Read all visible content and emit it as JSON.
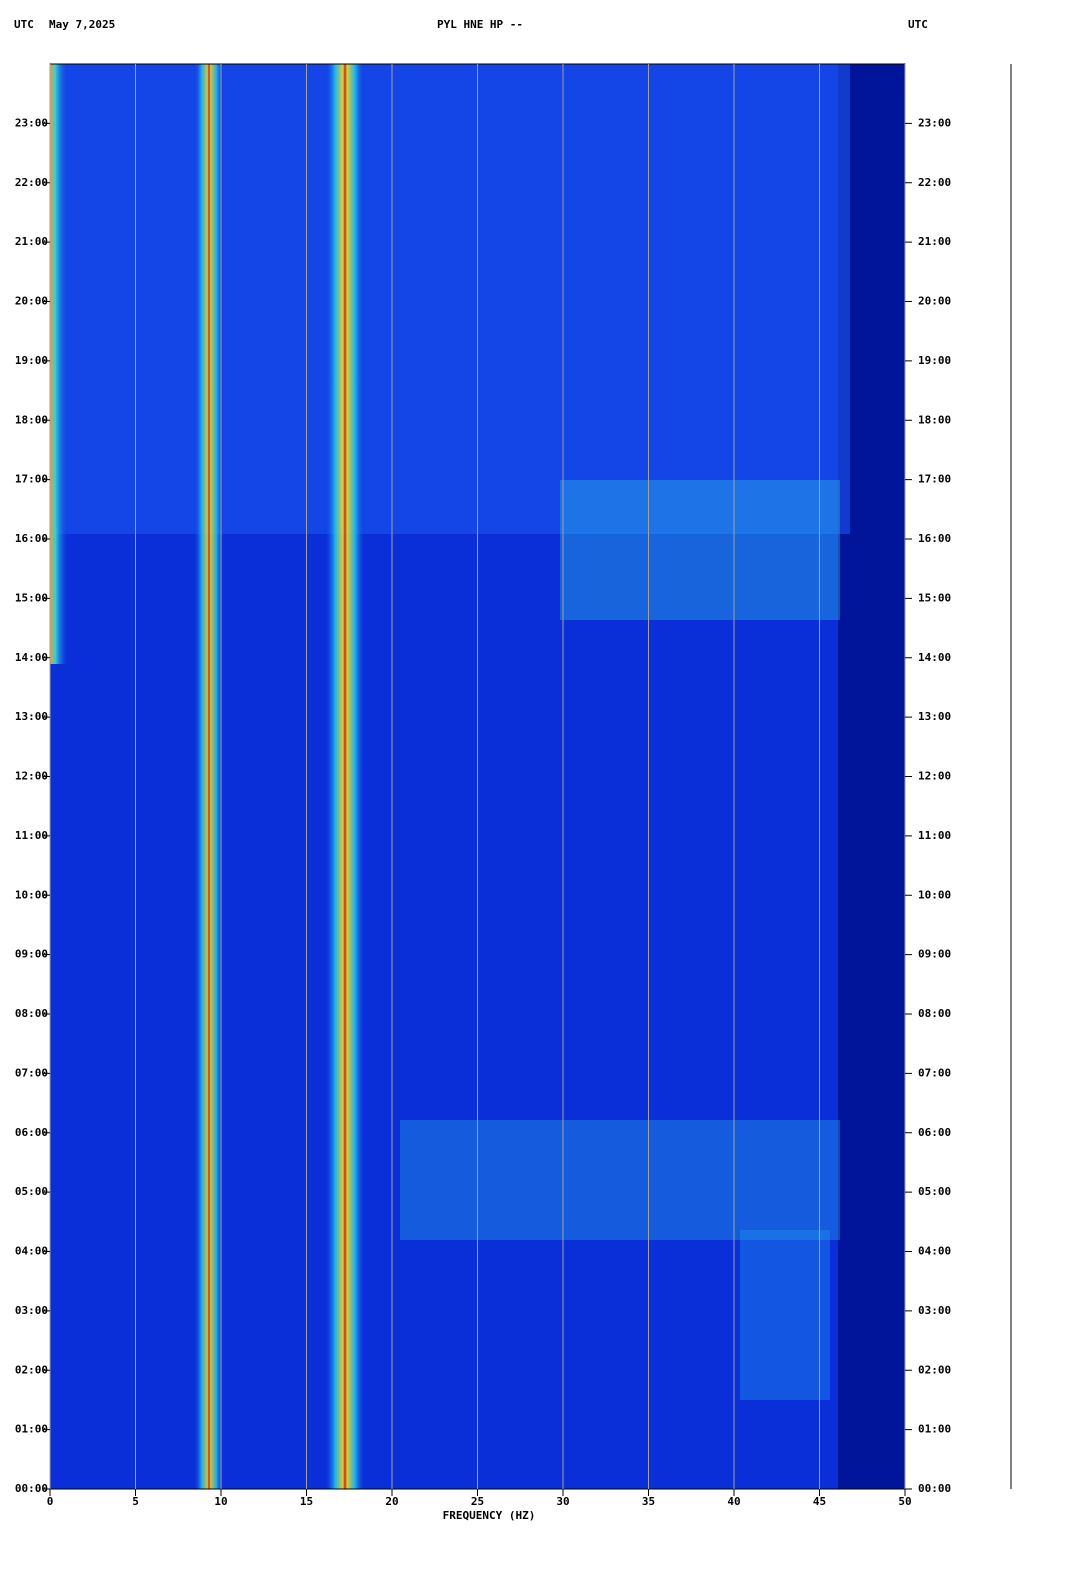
{
  "chart_data": {
    "type": "spectrogram",
    "title": "PYL HNE HP --",
    "timezone_left": "UTC",
    "date": "May 7,2025",
    "timezone_right": "UTC",
    "x_label": "FREQUENCY (HZ)",
    "xlim": [
      0,
      50
    ],
    "xticks": [
      0,
      5,
      10,
      15,
      20,
      25,
      30,
      35,
      40,
      45,
      50
    ],
    "ylim": [
      0,
      24
    ],
    "yticks": [
      {
        "value": 0,
        "label": "00:00"
      },
      {
        "value": 1,
        "label": "01:00"
      },
      {
        "value": 2,
        "label": "02:00"
      },
      {
        "value": 3,
        "label": "03:00"
      },
      {
        "value": 4,
        "label": "04:00"
      },
      {
        "value": 5,
        "label": "05:00"
      },
      {
        "value": 6,
        "label": "06:00"
      },
      {
        "value": 7,
        "label": "07:00"
      },
      {
        "value": 8,
        "label": "08:00"
      },
      {
        "value": 9,
        "label": "09:00"
      },
      {
        "value": 10,
        "label": "10:00"
      },
      {
        "value": 11,
        "label": "11:00"
      },
      {
        "value": 12,
        "label": "12:00"
      },
      {
        "value": 13,
        "label": "13:00"
      },
      {
        "value": 14,
        "label": "14:00"
      },
      {
        "value": 15,
        "label": "15:00"
      },
      {
        "value": 16,
        "label": "16:00"
      },
      {
        "value": 17,
        "label": "17:00"
      },
      {
        "value": 18,
        "label": "18:00"
      },
      {
        "value": 19,
        "label": "19:00"
      },
      {
        "value": 20,
        "label": "20:00"
      },
      {
        "value": 21,
        "label": "21:00"
      },
      {
        "value": 22,
        "label": "22:00"
      },
      {
        "value": 23,
        "label": "23:00"
      }
    ],
    "grid": true
  }
}
